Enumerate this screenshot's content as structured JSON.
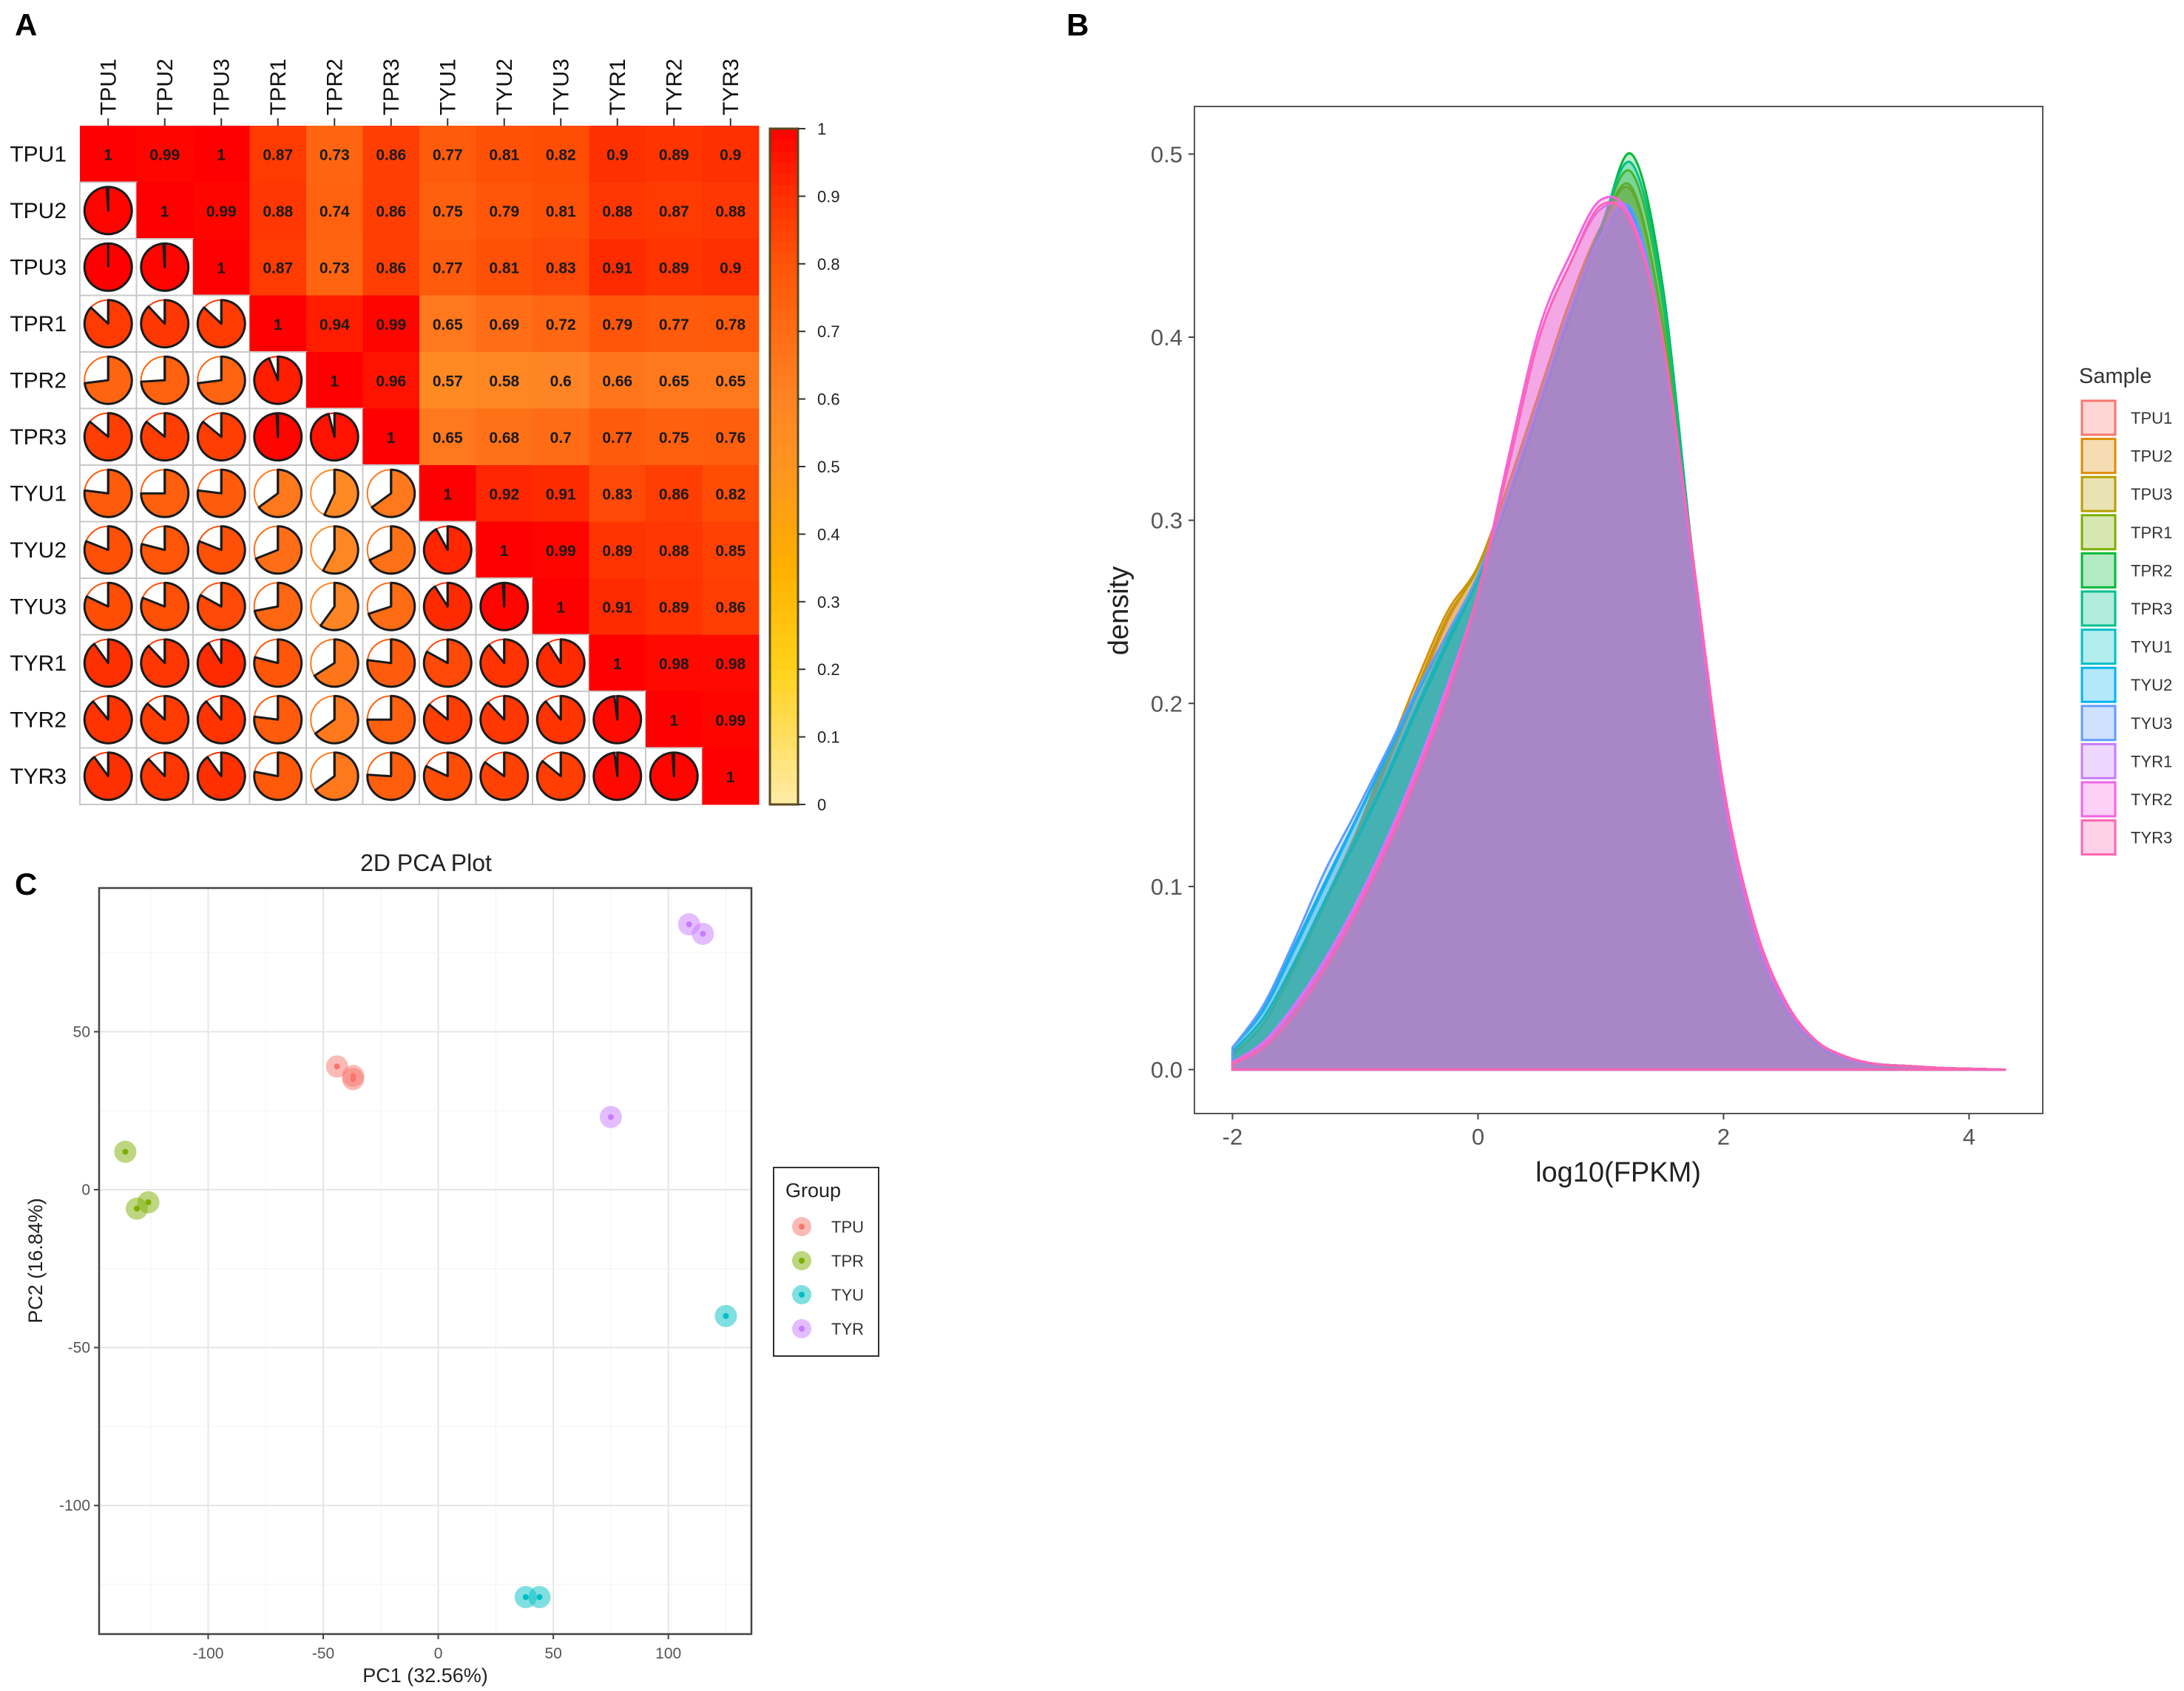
{
  "panels": {
    "a": "A",
    "b": "B",
    "c": "C"
  },
  "chart_data": [
    {
      "type": "heatmap",
      "title": "",
      "labels": [
        "TPU1",
        "TPU2",
        "TPU3",
        "TPR1",
        "TPR2",
        "TPR3",
        "TYU1",
        "TYU2",
        "TYU3",
        "TYR1",
        "TYR2",
        "TYR3"
      ],
      "matrix": [
        [
          1,
          0.99,
          1,
          0.87,
          0.73,
          0.86,
          0.77,
          0.81,
          0.82,
          0.9,
          0.89,
          0.9
        ],
        [
          0.99,
          1,
          0.99,
          0.88,
          0.74,
          0.86,
          0.75,
          0.79,
          0.81,
          0.88,
          0.87,
          0.88
        ],
        [
          1,
          0.99,
          1,
          0.87,
          0.73,
          0.86,
          0.77,
          0.81,
          0.83,
          0.91,
          0.89,
          0.9
        ],
        [
          0.87,
          0.88,
          0.87,
          1,
          0.94,
          0.99,
          0.65,
          0.69,
          0.72,
          0.79,
          0.77,
          0.78
        ],
        [
          0.73,
          0.74,
          0.73,
          0.94,
          1,
          0.96,
          0.57,
          0.58,
          0.6,
          0.66,
          0.65,
          0.65
        ],
        [
          0.86,
          0.86,
          0.86,
          0.99,
          0.96,
          1,
          0.65,
          0.68,
          0.7,
          0.77,
          0.75,
          0.76
        ],
        [
          0.77,
          0.75,
          0.77,
          0.65,
          0.57,
          0.65,
          1,
          0.92,
          0.91,
          0.83,
          0.86,
          0.82
        ],
        [
          0.81,
          0.79,
          0.81,
          0.69,
          0.58,
          0.68,
          0.92,
          1,
          0.99,
          0.89,
          0.88,
          0.85
        ],
        [
          0.82,
          0.81,
          0.83,
          0.72,
          0.6,
          0.7,
          0.91,
          0.99,
          1,
          0.91,
          0.89,
          0.86
        ],
        [
          0.9,
          0.88,
          0.91,
          0.79,
          0.66,
          0.77,
          0.83,
          0.89,
          0.91,
          1,
          0.98,
          0.98
        ],
        [
          0.89,
          0.87,
          0.89,
          0.77,
          0.65,
          0.75,
          0.86,
          0.88,
          0.89,
          0.98,
          1,
          0.99
        ],
        [
          0.9,
          0.88,
          0.9,
          0.78,
          0.65,
          0.76,
          0.82,
          0.85,
          0.86,
          0.98,
          0.99,
          1
        ]
      ],
      "upper": "numbers",
      "lower": "pie",
      "colorbar": {
        "ticks": [
          "0",
          "0.1",
          "0.2",
          "0.3",
          "0.4",
          "0.5",
          "0.6",
          "0.7",
          "0.8",
          "0.9",
          "1"
        ],
        "range": [
          0,
          1
        ]
      },
      "colorscale": [
        [
          0,
          "#FFEBA8"
        ],
        [
          0.2,
          "#FFD21A"
        ],
        [
          0.35,
          "#FFB000"
        ],
        [
          0.5,
          "#FF9420"
        ],
        [
          0.6,
          "#FF8424"
        ],
        [
          0.7,
          "#FF6C14"
        ],
        [
          0.8,
          "#FF5408"
        ],
        [
          0.9,
          "#FF3000"
        ],
        [
          1,
          "#FF0000"
        ]
      ]
    },
    {
      "type": "area",
      "title": "",
      "xlabel": "log10(FPKM)",
      "ylabel": "density",
      "xlim": [
        -2.31,
        4.6
      ],
      "ylim": [
        -0.024,
        0.526
      ],
      "xticks": [
        -2,
        0,
        2,
        4
      ],
      "xtick_labels": [
        "-2",
        "0",
        "2",
        "4"
      ],
      "yticks": [
        0,
        0.1,
        0.2,
        0.3,
        0.4,
        0.5
      ],
      "ytick_labels": [
        "0.0",
        "0.1",
        "0.2",
        "0.3",
        "0.4",
        "0.5"
      ],
      "legend": {
        "title": "Sample",
        "position": "right"
      },
      "x": [
        -2,
        -1.75,
        -1.5,
        -1.25,
        -1,
        -0.75,
        -0.5,
        -0.25,
        0,
        0.25,
        0.5,
        0.75,
        1,
        1.25,
        1.5,
        1.75,
        2,
        2.25,
        2.5,
        2.75,
        3,
        3.25,
        3.5,
        3.75,
        4,
        4.3
      ],
      "series": [
        {
          "name": "TPU1",
          "color": "#F8766D",
          "values": [
            0.008,
            0.025,
            0.055,
            0.09,
            0.125,
            0.165,
            0.205,
            0.245,
            0.275,
            0.32,
            0.37,
            0.42,
            0.46,
            0.48,
            0.41,
            0.28,
            0.15,
            0.075,
            0.035,
            0.015,
            0.006,
            0.003,
            0.002,
            0.001,
            0.0005,
            0
          ]
        },
        {
          "name": "TPU2",
          "color": "#DE8C00",
          "values": [
            0.008,
            0.025,
            0.056,
            0.092,
            0.128,
            0.17,
            0.212,
            0.25,
            0.275,
            0.32,
            0.37,
            0.42,
            0.46,
            0.48,
            0.41,
            0.28,
            0.15,
            0.075,
            0.035,
            0.015,
            0.006,
            0.003,
            0.002,
            0.001,
            0.0005,
            0
          ]
        },
        {
          "name": "TPU3",
          "color": "#B79F00",
          "values": [
            0.008,
            0.025,
            0.055,
            0.09,
            0.126,
            0.167,
            0.208,
            0.247,
            0.274,
            0.32,
            0.37,
            0.42,
            0.46,
            0.482,
            0.41,
            0.28,
            0.15,
            0.075,
            0.035,
            0.015,
            0.006,
            0.003,
            0.002,
            0.001,
            0.0005,
            0
          ]
        },
        {
          "name": "TPR1",
          "color": "#7CAE00",
          "values": [
            0.01,
            0.028,
            0.058,
            0.092,
            0.125,
            0.16,
            0.198,
            0.235,
            0.27,
            0.315,
            0.365,
            0.415,
            0.46,
            0.49,
            0.42,
            0.28,
            0.15,
            0.074,
            0.034,
            0.014,
            0.006,
            0.003,
            0.002,
            0.001,
            0.0005,
            0
          ]
        },
        {
          "name": "TPR2",
          "color": "#00BA38",
          "values": [
            0.01,
            0.028,
            0.058,
            0.092,
            0.124,
            0.158,
            0.196,
            0.232,
            0.268,
            0.312,
            0.362,
            0.412,
            0.458,
            0.5,
            0.43,
            0.28,
            0.15,
            0.074,
            0.034,
            0.014,
            0.006,
            0.003,
            0.002,
            0.001,
            0.0005,
            0
          ]
        },
        {
          "name": "TPR3",
          "color": "#00C08B",
          "values": [
            0.01,
            0.028,
            0.058,
            0.092,
            0.125,
            0.16,
            0.198,
            0.234,
            0.27,
            0.314,
            0.364,
            0.414,
            0.46,
            0.495,
            0.425,
            0.28,
            0.15,
            0.074,
            0.034,
            0.014,
            0.006,
            0.003,
            0.002,
            0.001,
            0.0005,
            0
          ]
        },
        {
          "name": "TYU1",
          "color": "#00BFC4",
          "values": [
            0.012,
            0.032,
            0.065,
            0.1,
            0.135,
            0.17,
            0.205,
            0.238,
            0.27,
            0.315,
            0.365,
            0.415,
            0.455,
            0.47,
            0.4,
            0.275,
            0.148,
            0.074,
            0.035,
            0.015,
            0.006,
            0.003,
            0.002,
            0.001,
            0.0005,
            0
          ]
        },
        {
          "name": "TYU2",
          "color": "#00B4F0",
          "values": [
            0.012,
            0.033,
            0.067,
            0.102,
            0.136,
            0.171,
            0.206,
            0.238,
            0.27,
            0.315,
            0.365,
            0.415,
            0.455,
            0.468,
            0.4,
            0.275,
            0.148,
            0.074,
            0.035,
            0.015,
            0.006,
            0.003,
            0.002,
            0.001,
            0.0005,
            0
          ]
        },
        {
          "name": "TYU3",
          "color": "#619CFF",
          "values": [
            0.012,
            0.035,
            0.07,
            0.108,
            0.14,
            0.173,
            0.207,
            0.238,
            0.27,
            0.315,
            0.365,
            0.415,
            0.455,
            0.47,
            0.4,
            0.275,
            0.148,
            0.074,
            0.035,
            0.015,
            0.006,
            0.003,
            0.002,
            0.001,
            0.0005,
            0
          ]
        },
        {
          "name": "TYR1",
          "color": "#C77CFF",
          "values": [
            0.004,
            0.015,
            0.035,
            0.06,
            0.09,
            0.125,
            0.165,
            0.21,
            0.26,
            0.33,
            0.4,
            0.44,
            0.47,
            0.465,
            0.4,
            0.278,
            0.152,
            0.078,
            0.037,
            0.016,
            0.007,
            0.003,
            0.002,
            0.001,
            0.0005,
            0
          ]
        },
        {
          "name": "TYR2",
          "color": "#F564E3",
          "values": [
            0.004,
            0.014,
            0.033,
            0.058,
            0.088,
            0.123,
            0.163,
            0.208,
            0.26,
            0.335,
            0.405,
            0.445,
            0.475,
            0.465,
            0.4,
            0.278,
            0.152,
            0.078,
            0.037,
            0.016,
            0.007,
            0.003,
            0.002,
            0.001,
            0.0005,
            0
          ]
        },
        {
          "name": "TYR3",
          "color": "#FF64B0",
          "values": [
            0.003,
            0.012,
            0.03,
            0.055,
            0.085,
            0.12,
            0.16,
            0.205,
            0.26,
            0.33,
            0.4,
            0.44,
            0.472,
            0.462,
            0.4,
            0.28,
            0.155,
            0.08,
            0.038,
            0.016,
            0.007,
            0.003,
            0.002,
            0.001,
            0.0005,
            0
          ]
        }
      ]
    },
    {
      "type": "scatter",
      "title": "2D PCA Plot",
      "xlabel": "PC1 (32.56%)",
      "ylabel": "PC2 (16.84%)",
      "xlim": [
        -147.4,
        136.1
      ],
      "ylim": [
        -140.7,
        95.5
      ],
      "xticks": [
        -100,
        -50,
        0,
        50,
        100
      ],
      "xtick_labels": [
        "-100",
        "-50",
        "0",
        "50",
        "100"
      ],
      "yticks": [
        50,
        0,
        -50,
        -100
      ],
      "ytick_labels": [
        "50",
        "0",
        "-50",
        "-100"
      ],
      "grid": true,
      "legend": {
        "title": "Group",
        "position": "right"
      },
      "series": [
        {
          "name": "TPU",
          "color": "#F8766D",
          "points": [
            [
              -44,
              39
            ],
            [
              -37,
              36
            ],
            [
              -37,
              35
            ]
          ]
        },
        {
          "name": "TPR",
          "color": "#7CAE00",
          "points": [
            [
              -136,
              12
            ],
            [
              -131,
              -6
            ],
            [
              -126,
              -4
            ]
          ]
        },
        {
          "name": "TYU",
          "color": "#00BFC4",
          "points": [
            [
              38,
              -129
            ],
            [
              44,
              -129
            ],
            [
              125,
              -40
            ]
          ]
        },
        {
          "name": "TYR",
          "color": "#C77CFF",
          "points": [
            [
              109,
              84
            ],
            [
              115,
              81
            ],
            [
              75,
              23
            ]
          ]
        }
      ]
    }
  ]
}
